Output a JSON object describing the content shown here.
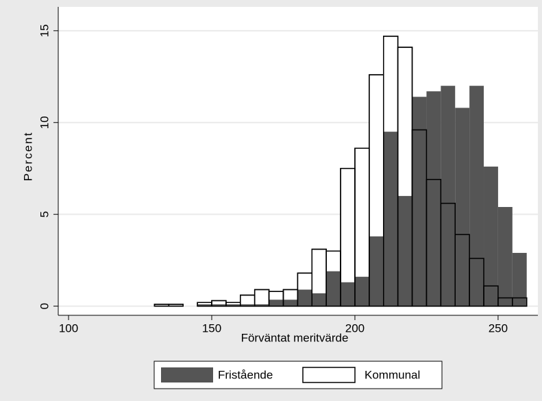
{
  "chart_data": {
    "type": "histogram",
    "xlabel": "Förväntat meritvärde",
    "ylabel": "Percent",
    "bins": [
      130,
      135,
      140,
      145,
      150,
      155,
      160,
      165,
      170,
      175,
      180,
      185,
      190,
      195,
      200,
      205,
      210,
      215,
      220,
      225,
      230,
      235,
      240,
      245,
      250,
      255,
      260
    ],
    "series": [
      {
        "name": "Fristående",
        "color": "#555555",
        "values": [
          0,
          0,
          0,
          0.1,
          0.1,
          0.1,
          0.1,
          0.1,
          0.35,
          0.35,
          0.9,
          0.7,
          1.9,
          1.3,
          1.6,
          3.8,
          9.5,
          6.0,
          11.4,
          11.7,
          12.0,
          10.8,
          12.0,
          7.6,
          5.4,
          2.9
        ]
      },
      {
        "name": "Kommunal",
        "color": "#ffffff",
        "values": [
          0.1,
          0.1,
          0,
          0.2,
          0.3,
          0.2,
          0.6,
          0.9,
          0.8,
          0.9,
          1.8,
          3.1,
          3.0,
          7.5,
          8.6,
          12.6,
          14.7,
          14.1,
          9.6,
          6.9,
          5.6,
          3.9,
          2.6,
          1.1,
          0.45,
          0.45
        ]
      }
    ],
    "xlim": [
      96.4,
      263.9
    ],
    "xticks": [
      100,
      150,
      200,
      250
    ],
    "ylim": [
      -0.5,
      16.3
    ],
    "yticks": [
      0,
      5,
      10,
      15
    ],
    "grid": true,
    "legend": "bottom"
  }
}
